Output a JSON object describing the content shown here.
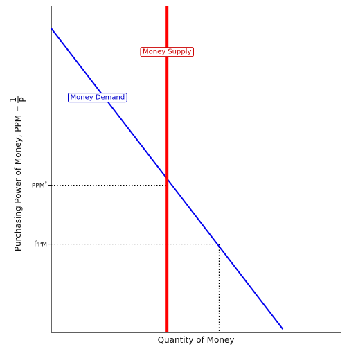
{
  "chart_data": {
    "type": "line",
    "title": "",
    "xlabel": "Quantity of Money",
    "ylabel_main": "Purchasing Power of Money, PPM =",
    "ylabel_frac_num": "1",
    "ylabel_frac_den": "P",
    "xlim": [
      0,
      10
    ],
    "ylim": [
      0,
      10
    ],
    "grid": false,
    "series": [
      {
        "name": "Money Demand",
        "color": "#0000ee",
        "x": [
          0,
          8
        ],
        "y": [
          9.3,
          0.1
        ]
      },
      {
        "name": "Money Supply",
        "color": "#ff0000",
        "x": [
          4,
          4
        ],
        "y": [
          0,
          10
        ]
      }
    ],
    "y_ticks": [
      {
        "label": "PPM",
        "sup": "°",
        "value": 4.5,
        "ref_x": 4
      },
      {
        "label": "P̂PM",
        "sup": "",
        "value": 2.7,
        "ref_x": 5.8
      }
    ],
    "annotations": [
      {
        "text": "Money Supply",
        "color": "#cc0000",
        "x": 4,
        "y": 8.6
      },
      {
        "text": "Money Demand",
        "color": "#0000cc",
        "x": 1.6,
        "y": 7.2
      }
    ]
  }
}
